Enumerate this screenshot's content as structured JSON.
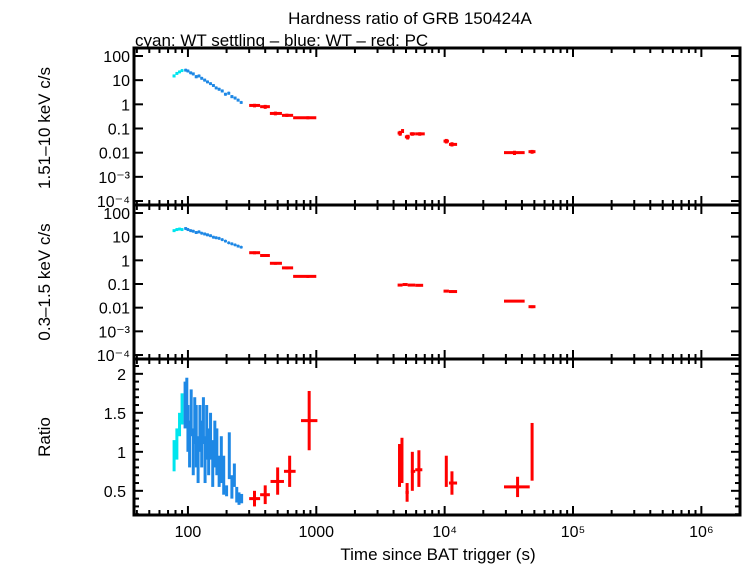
{
  "chart_data": [
    {
      "type": "scatter",
      "title": "Hardness ratio of GRB 150424A",
      "subtitle": "cyan: WT settling – blue: WT – red: PC",
      "ylabel": "1.51–10 keV c/s",
      "xscale": "log",
      "yscale": "log",
      "xlim": [
        38,
        2000000
      ],
      "ylim": [
        0.0001,
        100
      ],
      "y_ticks": [
        "100",
        "10",
        "1",
        "0.1",
        "0.01",
        "10⁻³",
        "10⁻⁴"
      ],
      "point_columns": [
        "t",
        "t_min",
        "t_max",
        "y",
        "y_min",
        "y_max"
      ],
      "series": [
        {
          "color": "#00e5ee",
          "points": [
            [
              78,
              76,
              80,
              15,
              13,
              17
            ],
            [
              82,
              80,
              84,
              19,
              17,
              21
            ],
            [
              86,
              84,
              88,
              22,
              20,
              24
            ],
            [
              90,
              88,
              92,
              25,
              23,
              27
            ]
          ]
        },
        {
          "color": "#1e88e5",
          "points": [
            [
              96,
              94,
              98,
              26,
              23,
              29
            ],
            [
              100,
              98,
              102,
              24,
              21,
              27
            ],
            [
              105,
              103,
              107,
              20,
              18,
              23
            ],
            [
              110,
              108,
              112,
              18,
              16,
              21
            ],
            [
              116,
              114,
              118,
              14,
              12,
              16
            ],
            [
              122,
              120,
              124,
              15,
              13,
              17
            ],
            [
              128,
              126,
              130,
              12,
              10.5,
              13.5
            ],
            [
              135,
              132,
              138,
              10,
              9,
              11.5
            ],
            [
              142,
              139,
              145,
              8.5,
              7.5,
              9.5
            ],
            [
              150,
              147,
              153,
              7.2,
              6.4,
              8
            ],
            [
              158,
              155,
              161,
              6,
              5.3,
              6.8
            ],
            [
              166,
              163,
              169,
              4.8,
              4.2,
              5.4
            ],
            [
              175,
              172,
              178,
              4.2,
              3.7,
              4.8
            ],
            [
              185,
              182,
              188,
              3.6,
              3.1,
              4.1
            ],
            [
              196,
              193,
              199,
              2.6,
              2.3,
              3
            ],
            [
              208,
              205,
              211,
              2.9,
              2.5,
              3.3
            ],
            [
              220,
              217,
              223,
              2.1,
              1.8,
              2.4
            ],
            [
              233,
              230,
              236,
              1.8,
              1.6,
              2.1
            ],
            [
              246,
              243,
              249,
              1.5,
              1.3,
              1.7
            ],
            [
              260,
              257,
              263,
              1.2,
              1.05,
              1.35
            ]
          ]
        },
        {
          "color": "#ff0000",
          "points": [
            [
              330,
              300,
              365,
              0.9,
              0.75,
              1.05
            ],
            [
              400,
              365,
              435,
              0.8,
              0.65,
              0.95
            ],
            [
              480,
              435,
              540,
              0.42,
              0.35,
              0.5
            ],
            [
              590,
              540,
              660,
              0.35,
              0.3,
              0.41
            ],
            [
              860,
              660,
              1000,
              0.28,
              0.24,
              0.32
            ],
            [
              4500,
              4300,
              4650,
              0.065,
              0.05,
              0.08
            ],
            [
              4700,
              4600,
              4800,
              0.08,
              0.065,
              0.095
            ],
            [
              5150,
              4900,
              5350,
              0.045,
              0.035,
              0.055
            ],
            [
              5600,
              5350,
              5900,
              0.06,
              0.05,
              0.07
            ],
            [
              6400,
              5900,
              7000,
              0.06,
              0.05,
              0.07
            ],
            [
              10300,
              9800,
              10800,
              0.03,
              0.024,
              0.037
            ],
            [
              11400,
              10800,
              12500,
              0.022,
              0.018,
              0.027
            ],
            [
              35000,
              29000,
              42000,
              0.01,
              0.008,
              0.012
            ],
            [
              48000,
              45000,
              51000,
              0.011,
              0.009,
              0.013
            ]
          ]
        }
      ]
    },
    {
      "type": "scatter",
      "ylabel": "0.3–1.5 keV c/s",
      "xscale": "log",
      "yscale": "log",
      "xlim": [
        38,
        2000000
      ],
      "ylim": [
        0.0001,
        100
      ],
      "y_ticks": [
        "100",
        "10",
        "1",
        "0.1",
        "0.01",
        "10⁻³",
        "10⁻⁴"
      ],
      "point_columns": [
        "t",
        "t_min",
        "t_max",
        "y",
        "y_min",
        "y_max"
      ],
      "series": [
        {
          "color": "#00e5ee",
          "points": [
            [
              78,
              76,
              80,
              18,
              16,
              20
            ],
            [
              82,
              80,
              84,
              20,
              18,
              22
            ],
            [
              86,
              84,
              88,
              21,
              19,
              23
            ],
            [
              90,
              88,
              92,
              20,
              18,
              22
            ]
          ]
        },
        {
          "color": "#1e88e5",
          "points": [
            [
              96,
              94,
              98,
              22,
              20,
              25
            ],
            [
              100,
              98,
              102,
              20,
              18,
              22
            ],
            [
              105,
              103,
              107,
              18,
              16,
              20
            ],
            [
              110,
              108,
              112,
              17,
              15,
              19
            ],
            [
              116,
              114,
              118,
              15,
              13,
              17
            ],
            [
              122,
              120,
              124,
              16,
              14,
              18
            ],
            [
              128,
              126,
              130,
              14,
              12.5,
              15.5
            ],
            [
              135,
              132,
              138,
              13,
              11.5,
              14.5
            ],
            [
              142,
              139,
              145,
              12,
              10.5,
              13.5
            ],
            [
              150,
              147,
              153,
              11,
              9.8,
              12.2
            ],
            [
              158,
              155,
              161,
              9.5,
              8.5,
              10.5
            ],
            [
              166,
              163,
              169,
              9,
              8,
              10
            ],
            [
              175,
              172,
              178,
              8.5,
              7.6,
              9.4
            ],
            [
              185,
              182,
              188,
              7.5,
              6.7,
              8.3
            ],
            [
              196,
              193,
              199,
              6.5,
              5.8,
              7.2
            ],
            [
              208,
              205,
              211,
              5.5,
              4.9,
              6.1
            ],
            [
              220,
              217,
              223,
              5,
              4.4,
              5.6
            ],
            [
              233,
              230,
              236,
              4.5,
              4,
              5
            ],
            [
              246,
              243,
              249,
              4,
              3.5,
              4.5
            ],
            [
              260,
              257,
              263,
              3.6,
              3.2,
              4
            ]
          ]
        },
        {
          "color": "#ff0000",
          "points": [
            [
              330,
              300,
              365,
              2.1,
              1.8,
              2.4
            ],
            [
              400,
              365,
              435,
              1.6,
              1.4,
              1.8
            ],
            [
              480,
              435,
              540,
              0.75,
              0.65,
              0.85
            ],
            [
              590,
              540,
              660,
              0.48,
              0.42,
              0.55
            ],
            [
              860,
              660,
              1000,
              0.21,
              0.18,
              0.24
            ],
            [
              4500,
              4300,
              4700,
              0.09,
              0.08,
              0.1
            ],
            [
              4900,
              4700,
              5150,
              0.095,
              0.085,
              0.105
            ],
            [
              5500,
              5150,
              5900,
              0.09,
              0.08,
              0.1
            ],
            [
              6300,
              5900,
              6800,
              0.088,
              0.078,
              0.098
            ],
            [
              10300,
              9800,
              10800,
              0.05,
              0.044,
              0.056
            ],
            [
              11400,
              10800,
              12500,
              0.048,
              0.042,
              0.054
            ],
            [
              35000,
              29000,
              42000,
              0.019,
              0.017,
              0.021
            ],
            [
              48000,
              45000,
              51000,
              0.011,
              0.0095,
              0.0125
            ]
          ]
        }
      ]
    },
    {
      "type": "scatter",
      "xlabel": "Time since BAT trigger (s)",
      "ylabel": "Ratio",
      "xscale": "log",
      "yscale": "linear",
      "xlim": [
        38,
        2000000
      ],
      "ylim": [
        0.19,
        2.19
      ],
      "x_ticks": [
        "100",
        "1000",
        "10⁴",
        "10⁵",
        "10⁶"
      ],
      "y_ticks": [
        "2",
        "1.5",
        "1",
        "0.5"
      ],
      "point_columns": [
        "t",
        "t_min",
        "t_max",
        "y",
        "y_min",
        "y_max"
      ],
      "series": [
        {
          "color": "#00e5ee",
          "points": [
            [
              78,
              77,
              79,
              0.95,
              0.75,
              1.15
            ],
            [
              82,
              81,
              83,
              1.1,
              0.9,
              1.3
            ],
            [
              86,
              85,
              87,
              1.35,
              1.2,
              1.5
            ],
            [
              90,
              89,
              91,
              1.55,
              1.35,
              1.75
            ]
          ]
        },
        {
          "color": "#1e88e5",
          "points": [
            [
              95,
              94,
              96,
              1.6,
              1.3,
              1.9
            ],
            [
              98,
              97,
              99,
              1.75,
              1.55,
              1.95
            ],
            [
              100,
              99,
              101,
              1.3,
              1.0,
              1.6
            ],
            [
              103,
              102,
              104,
              1.1,
              0.8,
              1.4
            ],
            [
              106,
              105,
              107,
              1.5,
              1.2,
              1.8
            ],
            [
              110,
              109,
              111,
              1.0,
              0.7,
              1.3
            ],
            [
              113,
              112,
              114,
              1.4,
              1.1,
              1.7
            ],
            [
              116,
              115,
              117,
              1.2,
              0.8,
              1.6
            ],
            [
              120,
              119,
              121,
              0.9,
              0.6,
              1.2
            ],
            [
              124,
              123,
              125,
              1.3,
              1.0,
              1.6
            ],
            [
              128,
              127,
              129,
              1.1,
              0.8,
              1.4
            ],
            [
              132,
              131,
              133,
              1.4,
              1.1,
              1.7
            ],
            [
              136,
              135,
              137,
              0.9,
              0.6,
              1.2
            ],
            [
              140,
              139,
              141,
              1.25,
              0.9,
              1.6
            ],
            [
              145,
              144,
              146,
              1.0,
              0.7,
              1.3
            ],
            [
              150,
              149,
              151,
              1.2,
              0.9,
              1.5
            ],
            [
              156,
              155,
              157,
              0.85,
              0.55,
              1.15
            ],
            [
              162,
              161,
              163,
              1.1,
              0.8,
              1.4
            ],
            [
              168,
              167,
              169,
              1.0,
              0.7,
              1.3
            ],
            [
              175,
              174,
              176,
              0.75,
              0.55,
              0.95
            ],
            [
              182,
              181,
              183,
              0.9,
              0.6,
              1.2
            ],
            [
              190,
              189,
              191,
              0.7,
              0.45,
              0.95
            ],
            [
              200,
              195,
              205,
              0.5,
              0.43,
              0.57
            ],
            [
              210,
              209,
              211,
              0.95,
              0.65,
              1.25
            ],
            [
              220,
              219,
              221,
              0.55,
              0.4,
              0.7
            ],
            [
              230,
              227,
              233,
              0.7,
              0.55,
              0.85
            ],
            [
              240,
              237,
              243,
              0.45,
              0.35,
              0.55
            ],
            [
              250,
              246,
              254,
              0.4,
              0.32,
              0.48
            ],
            [
              262,
              258,
              266,
              0.4,
              0.34,
              0.46
            ]
          ]
        },
        {
          "color": "#ff0000",
          "points": [
            [
              330,
              300,
              365,
              0.4,
              0.3,
              0.5
            ],
            [
              400,
              365,
              435,
              0.45,
              0.33,
              0.57
            ],
            [
              500,
              440,
              560,
              0.62,
              0.45,
              0.8
            ],
            [
              620,
              560,
              690,
              0.75,
              0.55,
              0.95
            ],
            [
              880,
              760,
              1020,
              1.4,
              1.02,
              1.78
            ],
            [
              4450,
              4400,
              4550,
              0.82,
              0.55,
              1.1
            ],
            [
              4650,
              4550,
              4750,
              0.85,
              0.6,
              1.18
            ],
            [
              5100,
              4950,
              5250,
              0.48,
              0.36,
              0.6
            ],
            [
              5600,
              5450,
              5900,
              0.75,
              0.5,
              1.0
            ],
            [
              6300,
              5900,
              6700,
              0.77,
              0.55,
              1.02
            ],
            [
              10300,
              10100,
              10500,
              0.72,
              0.55,
              0.95
            ],
            [
              11400,
              10800,
              12500,
              0.6,
              0.45,
              0.75
            ],
            [
              37000,
              29000,
              46000,
              0.55,
              0.42,
              0.68
            ],
            [
              48000,
              47000,
              49000,
              1.0,
              0.63,
              1.37
            ]
          ]
        }
      ]
    }
  ]
}
